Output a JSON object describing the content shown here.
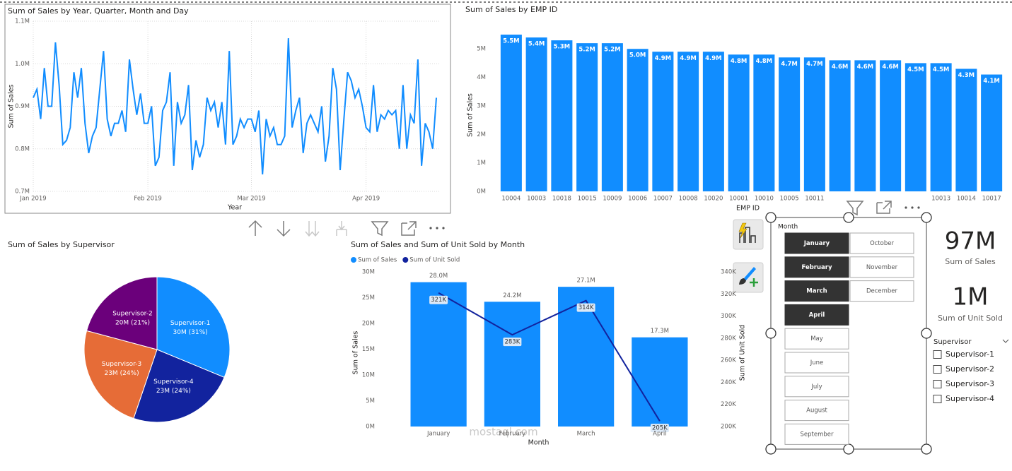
{
  "chart_data": [
    {
      "type": "line",
      "title": "Sum of Sales by Year, Quarter, Month and Day",
      "x_label": "Year",
      "y_label": "Sum of Sales",
      "values": [
        0.92,
        0.94,
        0.87,
        0.99,
        0.9,
        0.9,
        1.05,
        0.95,
        0.81,
        0.82,
        0.85,
        0.98,
        0.92,
        0.99,
        0.86,
        0.79,
        0.83,
        0.85,
        0.94,
        1.03,
        0.87,
        0.83,
        0.86,
        0.86,
        0.89,
        0.84,
        1.01,
        0.94,
        0.88,
        0.93,
        0.86,
        0.86,
        0.9,
        0.76,
        0.78,
        0.89,
        0.91,
        0.98,
        0.76,
        0.91,
        0.86,
        0.88,
        0.95,
        0.75,
        0.82,
        0.78,
        0.81,
        0.92,
        0.89,
        0.91,
        0.85,
        0.91,
        0.81,
        1.03,
        0.81,
        0.83,
        0.87,
        0.85,
        0.87,
        0.87,
        0.84,
        0.89,
        0.74,
        0.87,
        0.83,
        0.85,
        0.81,
        0.81,
        0.83,
        1.06,
        0.85,
        0.89,
        0.92,
        0.79,
        0.86,
        0.88,
        0.86,
        0.84,
        0.9,
        0.77,
        0.83,
        0.99,
        0.94,
        0.75,
        0.87,
        0.98,
        0.96,
        0.92,
        0.94,
        0.9,
        0.85,
        0.84,
        0.95,
        0.84,
        0.88,
        0.87,
        0.89,
        0.88,
        0.89,
        0.8,
        0.95,
        0.8,
        0.88,
        0.86,
        1.01,
        0.76,
        0.86,
        0.84,
        0.8,
        0.92
      ],
      "color": "#118DFF",
      "xlim": [
        0,
        109
      ],
      "xticks": [
        {
          "value": 0,
          "label": "Jan 2019"
        },
        {
          "value": 31,
          "label": "Feb 2019"
        },
        {
          "value": 59,
          "label": "Mar 2019"
        },
        {
          "value": 90,
          "label": "Apr 2019"
        }
      ],
      "ylim": [
        0.7,
        1.1
      ],
      "yticks": [
        {
          "value": 0.7,
          "label": "0.7M"
        },
        {
          "value": 0.8,
          "label": "0.8M"
        },
        {
          "value": 0.9,
          "label": "0.9M"
        },
        {
          "value": 1.0,
          "label": "1.0M"
        },
        {
          "value": 1.1,
          "label": "1.1M"
        }
      ],
      "grid": true
    },
    {
      "type": "bar",
      "title": "Sum of Sales by EMP ID",
      "x_label": "EMP ID",
      "y_label": "Sum of Sales",
      "categories": [
        "10004",
        "10003",
        "10018",
        "10015",
        "10009",
        "10006",
        "10007",
        "10008",
        "10020",
        "10001",
        "10010",
        "10005",
        "10011",
        null,
        null,
        null,
        null,
        "10013",
        "10014",
        "10017"
      ],
      "values": [
        5.5,
        5.4,
        5.3,
        5.2,
        5.2,
        5.0,
        4.9,
        4.9,
        4.9,
        4.8,
        4.8,
        4.7,
        4.7,
        4.6,
        4.6,
        4.6,
        4.5,
        4.5,
        4.3,
        4.1
      ],
      "value_labels": [
        "5.5M",
        "5.4M",
        "5.3M",
        "5.2M",
        "5.2M",
        "5.0M",
        "4.9M",
        "4.9M",
        "4.9M",
        "4.8M",
        "4.8M",
        "4.7M",
        "4.7M",
        "4.6M",
        "4.6M",
        "4.6M",
        "4.5M",
        "4.5M",
        "4.3M",
        "4.1M"
      ],
      "color": "#118DFF",
      "ylim": [
        0,
        5.6
      ],
      "yticks": [
        {
          "value": 0,
          "label": "0M"
        },
        {
          "value": 1,
          "label": "1M"
        },
        {
          "value": 2,
          "label": "2M"
        },
        {
          "value": 3,
          "label": "3M"
        },
        {
          "value": 4,
          "label": "4M"
        },
        {
          "value": 5,
          "label": "5M"
        }
      ],
      "grid": false
    },
    {
      "type": "pie",
      "title": "Sum of Sales by Supervisor",
      "categories": [
        "Supervisor-1",
        "Supervisor-4",
        "Supervisor-3",
        "Supervisor-2"
      ],
      "values": [
        30,
        23,
        23,
        20
      ],
      "value_labels": [
        "30M (31%)",
        "23M (24%)",
        "23M (24%)",
        "20M (21%)"
      ],
      "colors": [
        "#118DFF",
        "#12239E",
        "#E66C37",
        "#6B007B"
      ]
    },
    {
      "type": "combo",
      "title": "Sum of Sales and Sum of Unit Sold by Month",
      "x_label": "Month",
      "y_label": "Sum of Sales",
      "y2_label": "Sum of Unit Sold",
      "categories": [
        "January",
        "February",
        "March",
        "April"
      ],
      "series": [
        {
          "name": "Sum of Sales",
          "type": "bar",
          "color": "#118DFF",
          "values": [
            28.0,
            24.2,
            27.1,
            17.3
          ],
          "value_labels": [
            "28.0M",
            "24.2M",
            "27.1M",
            "17.3M"
          ]
        },
        {
          "name": "Sum of Unit Sold",
          "type": "line",
          "axis": "y2",
          "color": "#12239E",
          "values": [
            321,
            283,
            314,
            205
          ],
          "value_labels": [
            "321K",
            "283K",
            "314K",
            "205K"
          ]
        }
      ],
      "ylim": [
        0,
        30
      ],
      "yticks": [
        {
          "value": 0,
          "label": "0M"
        },
        {
          "value": 5,
          "label": "5M"
        },
        {
          "value": 10,
          "label": "10M"
        },
        {
          "value": 15,
          "label": "15M"
        },
        {
          "value": 20,
          "label": "20M"
        },
        {
          "value": 25,
          "label": "25M"
        },
        {
          "value": 30,
          "label": "30M"
        }
      ],
      "y2lim": [
        200,
        340
      ],
      "y2ticks": [
        {
          "value": 200,
          "label": "200K"
        },
        {
          "value": 220,
          "label": "220K"
        },
        {
          "value": 240,
          "label": "240K"
        },
        {
          "value": 260,
          "label": "260K"
        },
        {
          "value": 280,
          "label": "280K"
        },
        {
          "value": 300,
          "label": "300K"
        },
        {
          "value": 320,
          "label": "320K"
        },
        {
          "value": 340,
          "label": "340K"
        }
      ]
    }
  ],
  "slicer": {
    "title": "Month",
    "options": [
      {
        "label": "January",
        "selected": true
      },
      {
        "label": "February",
        "selected": true
      },
      {
        "label": "March",
        "selected": true
      },
      {
        "label": "April",
        "selected": true
      },
      {
        "label": "May",
        "selected": false
      },
      {
        "label": "June",
        "selected": false
      },
      {
        "label": "July",
        "selected": false
      },
      {
        "label": "August",
        "selected": false
      },
      {
        "label": "September",
        "selected": false
      },
      {
        "label": "October",
        "selected": false
      },
      {
        "label": "November",
        "selected": false
      },
      {
        "label": "December",
        "selected": false
      }
    ]
  },
  "cards": [
    {
      "value": "97M",
      "label": "Sum of Sales"
    },
    {
      "value": "1M",
      "label": "Sum of Unit Sold"
    }
  ],
  "filter": {
    "title": "Supervisor",
    "options": [
      "Supervisor-1",
      "Supervisor-2",
      "Supervisor-3",
      "Supervisor-4"
    ]
  },
  "watermark": "mostaql.com"
}
